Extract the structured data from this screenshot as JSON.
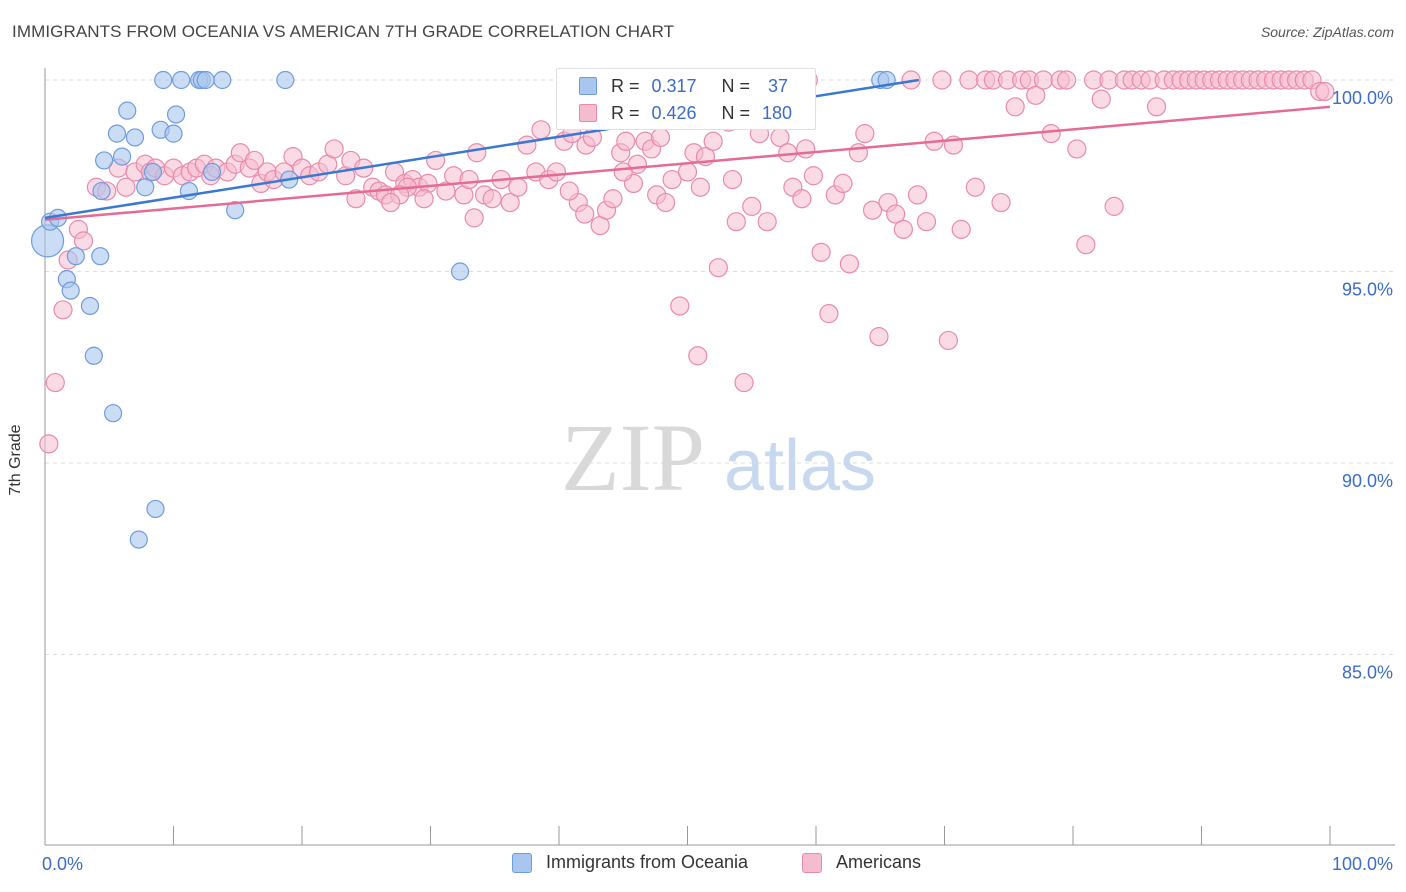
{
  "header": {
    "title": "IMMIGRANTS FROM OCEANIA VS AMERICAN 7TH GRADE CORRELATION CHART",
    "source": "Source: ZipAtlas.com"
  },
  "watermark": {
    "zip": "ZIP",
    "atlas": "atlas"
  },
  "legend": {
    "r_label": "R =",
    "n_label": "N =",
    "blue": {
      "r": "0.317",
      "n": "37"
    },
    "pink": {
      "r": "0.426",
      "n": "180"
    }
  },
  "bottom_legend": {
    "blue_label": "Immigrants from Oceania",
    "pink_label": "Americans"
  },
  "colors": {
    "blue_fill": "#a9c6ee",
    "blue_stroke": "#6f9cdc",
    "blue_line": "#3a78d1",
    "pink_fill": "#f5bcd0",
    "pink_stroke": "#ea8aab",
    "pink_line": "#e56a95",
    "tick_text": "#3b6cc7",
    "grid": "#dedede"
  },
  "chart_data": {
    "type": "scatter",
    "title": "IMMIGRANTS FROM OCEANIA VS AMERICAN 7TH GRADE CORRELATION CHART",
    "xlabel": "",
    "ylabel": "7th Grade",
    "xlim": [
      0,
      100
    ],
    "ylim": [
      80.5,
      100.7
    ],
    "x_tick_labels": [
      "0.0%",
      "100.0%"
    ],
    "y_ticks": [
      {
        "value": 100,
        "label": "100.0%"
      },
      {
        "value": 95,
        "label": "95.0%"
      },
      {
        "value": 90,
        "label": "90.0%"
      },
      {
        "value": 85,
        "label": "85.0%"
      }
    ],
    "grid": true,
    "series": [
      {
        "name": "Immigrants from Oceania",
        "color": "#6f9cdc",
        "points": [
          [
            0.2,
            95.8
          ],
          [
            0.4,
            96.3
          ],
          [
            1.0,
            96.4
          ],
          [
            1.7,
            94.8
          ],
          [
            2.0,
            94.5
          ],
          [
            2.4,
            95.4
          ],
          [
            3.5,
            94.1
          ],
          [
            3.8,
            92.8
          ],
          [
            4.3,
            95.4
          ],
          [
            4.4,
            97.1
          ],
          [
            4.6,
            97.9
          ],
          [
            5.3,
            91.3
          ],
          [
            5.6,
            98.6
          ],
          [
            6.0,
            98.0
          ],
          [
            6.4,
            99.2
          ],
          [
            7.0,
            98.5
          ],
          [
            7.3,
            88.0
          ],
          [
            7.8,
            97.2
          ],
          [
            8.4,
            97.6
          ],
          [
            8.6,
            88.8
          ],
          [
            9.0,
            98.7
          ],
          [
            9.2,
            100.0
          ],
          [
            10.0,
            98.6
          ],
          [
            10.2,
            99.1
          ],
          [
            10.6,
            100.0
          ],
          [
            11.2,
            97.1
          ],
          [
            12.0,
            100.0
          ],
          [
            12.2,
            100.0
          ],
          [
            12.5,
            100.0
          ],
          [
            13.0,
            97.6
          ],
          [
            13.8,
            100.0
          ],
          [
            14.8,
            96.6
          ],
          [
            18.7,
            100.0
          ],
          [
            19.0,
            97.4
          ],
          [
            32.3,
            95.0
          ],
          [
            65.0,
            100.0
          ],
          [
            65.5,
            100.0
          ]
        ]
      },
      {
        "name": "Americans",
        "color": "#ea8aab",
        "points": [
          [
            0.3,
            90.5
          ],
          [
            0.8,
            92.1
          ],
          [
            1.4,
            94.0
          ],
          [
            1.8,
            95.3
          ],
          [
            2.6,
            96.1
          ],
          [
            3.0,
            95.8
          ],
          [
            4.0,
            97.2
          ],
          [
            4.8,
            97.1
          ],
          [
            5.7,
            97.7
          ],
          [
            6.3,
            97.2
          ],
          [
            7.0,
            97.6
          ],
          [
            7.8,
            97.8
          ],
          [
            8.2,
            97.6
          ],
          [
            8.6,
            97.7
          ],
          [
            9.3,
            97.5
          ],
          [
            10.0,
            97.7
          ],
          [
            10.7,
            97.5
          ],
          [
            11.3,
            97.6
          ],
          [
            11.8,
            97.7
          ],
          [
            12.4,
            97.8
          ],
          [
            12.9,
            97.5
          ],
          [
            13.3,
            97.7
          ],
          [
            14.2,
            97.6
          ],
          [
            14.8,
            97.8
          ],
          [
            15.2,
            98.1
          ],
          [
            15.9,
            97.7
          ],
          [
            16.3,
            97.9
          ],
          [
            16.8,
            97.3
          ],
          [
            17.3,
            97.6
          ],
          [
            17.8,
            97.4
          ],
          [
            18.6,
            97.6
          ],
          [
            19.3,
            98.0
          ],
          [
            20.0,
            97.7
          ],
          [
            20.6,
            97.5
          ],
          [
            21.3,
            97.6
          ],
          [
            22.0,
            97.8
          ],
          [
            22.5,
            98.2
          ],
          [
            23.4,
            97.5
          ],
          [
            23.8,
            97.9
          ],
          [
            24.2,
            96.9
          ],
          [
            24.8,
            97.7
          ],
          [
            25.5,
            97.2
          ],
          [
            26.0,
            97.1
          ],
          [
            26.5,
            97.0
          ],
          [
            27.2,
            97.6
          ],
          [
            28.0,
            97.3
          ],
          [
            28.6,
            97.4
          ],
          [
            29.1,
            97.2
          ],
          [
            29.8,
            97.3
          ],
          [
            30.4,
            97.9
          ],
          [
            31.2,
            97.1
          ],
          [
            31.8,
            97.5
          ],
          [
            32.6,
            97.0
          ],
          [
            33.0,
            97.4
          ],
          [
            33.6,
            98.1
          ],
          [
            34.2,
            97.0
          ],
          [
            34.8,
            96.9
          ],
          [
            35.5,
            97.4
          ],
          [
            36.2,
            96.8
          ],
          [
            36.8,
            97.2
          ],
          [
            37.5,
            98.3
          ],
          [
            38.2,
            97.6
          ],
          [
            38.6,
            98.7
          ],
          [
            39.2,
            97.4
          ],
          [
            39.8,
            97.6
          ],
          [
            40.4,
            98.4
          ],
          [
            41.0,
            98.6
          ],
          [
            41.5,
            96.8
          ],
          [
            42.1,
            98.3
          ],
          [
            42.6,
            98.5
          ],
          [
            43.2,
            96.2
          ],
          [
            43.7,
            96.6
          ],
          [
            44.2,
            96.9
          ],
          [
            44.8,
            98.1
          ],
          [
            45.2,
            98.4
          ],
          [
            45.8,
            97.3
          ],
          [
            46.1,
            97.8
          ],
          [
            46.7,
            98.4
          ],
          [
            47.2,
            98.2
          ],
          [
            47.6,
            97.0
          ],
          [
            48.3,
            96.8
          ],
          [
            48.8,
            97.4
          ],
          [
            49.4,
            94.1
          ],
          [
            50.0,
            97.6
          ],
          [
            50.5,
            98.1
          ],
          [
            50.8,
            92.8
          ],
          [
            51.4,
            98.0
          ],
          [
            52.0,
            98.4
          ],
          [
            52.4,
            95.1
          ],
          [
            53.2,
            98.9
          ],
          [
            53.8,
            96.3
          ],
          [
            54.4,
            92.1
          ],
          [
            55.0,
            96.7
          ],
          [
            55.6,
            98.6
          ],
          [
            56.2,
            96.3
          ],
          [
            57.2,
            98.5
          ],
          [
            57.8,
            98.1
          ],
          [
            58.2,
            97.2
          ],
          [
            58.9,
            96.9
          ],
          [
            59.2,
            98.2
          ],
          [
            59.8,
            97.5
          ],
          [
            60.4,
            95.5
          ],
          [
            61.0,
            93.9
          ],
          [
            61.5,
            97.0
          ],
          [
            62.1,
            97.3
          ],
          [
            62.6,
            95.2
          ],
          [
            63.3,
            98.1
          ],
          [
            63.8,
            98.6
          ],
          [
            64.4,
            96.6
          ],
          [
            64.9,
            93.3
          ],
          [
            65.6,
            96.8
          ],
          [
            66.2,
            96.5
          ],
          [
            66.8,
            96.1
          ],
          [
            67.4,
            100.0
          ],
          [
            67.9,
            97.0
          ],
          [
            68.6,
            96.3
          ],
          [
            69.2,
            98.4
          ],
          [
            69.8,
            100.0
          ],
          [
            70.3,
            93.2
          ],
          [
            70.7,
            98.3
          ],
          [
            71.3,
            96.1
          ],
          [
            71.9,
            100.0
          ],
          [
            72.4,
            97.2
          ],
          [
            73.2,
            100.0
          ],
          [
            73.8,
            100.0
          ],
          [
            74.4,
            96.8
          ],
          [
            74.9,
            100.0
          ],
          [
            75.5,
            99.3
          ],
          [
            76.0,
            100.0
          ],
          [
            76.6,
            100.0
          ],
          [
            77.1,
            99.6
          ],
          [
            77.7,
            100.0
          ],
          [
            78.3,
            98.6
          ],
          [
            79.0,
            100.0
          ],
          [
            79.5,
            100.0
          ],
          [
            80.3,
            98.2
          ],
          [
            81.0,
            95.7
          ],
          [
            81.6,
            100.0
          ],
          [
            82.2,
            99.5
          ],
          [
            82.8,
            100.0
          ],
          [
            83.2,
            96.7
          ],
          [
            84.0,
            100.0
          ],
          [
            84.6,
            100.0
          ],
          [
            85.3,
            100.0
          ],
          [
            86.0,
            100.0
          ],
          [
            86.5,
            99.3
          ],
          [
            87.1,
            100.0
          ],
          [
            87.8,
            100.0
          ],
          [
            88.4,
            100.0
          ],
          [
            89.0,
            100.0
          ],
          [
            89.6,
            100.0
          ],
          [
            90.2,
            100.0
          ],
          [
            90.8,
            100.0
          ],
          [
            91.4,
            100.0
          ],
          [
            92.0,
            100.0
          ],
          [
            92.6,
            100.0
          ],
          [
            93.2,
            100.0
          ],
          [
            93.8,
            100.0
          ],
          [
            94.4,
            100.0
          ],
          [
            95.0,
            100.0
          ],
          [
            95.6,
            100.0
          ],
          [
            96.2,
            100.0
          ],
          [
            96.8,
            100.0
          ],
          [
            97.4,
            100.0
          ],
          [
            98.0,
            100.0
          ],
          [
            98.6,
            100.0
          ],
          [
            99.2,
            99.7
          ],
          [
            99.6,
            99.7
          ],
          [
            28.2,
            97.2
          ],
          [
            27.6,
            97.0
          ],
          [
            26.9,
            96.8
          ],
          [
            33.4,
            96.4
          ],
          [
            29.5,
            96.9
          ],
          [
            40.8,
            97.1
          ],
          [
            42.0,
            96.5
          ],
          [
            45.0,
            97.6
          ],
          [
            47.9,
            98.5
          ],
          [
            51.0,
            97.2
          ],
          [
            53.5,
            97.4
          ],
          [
            59.4,
            100.0
          ]
        ]
      }
    ],
    "trendlines": [
      {
        "series": "Immigrants from Oceania",
        "x": [
          0,
          68
        ],
        "y": [
          96.4,
          100.0
        ]
      },
      {
        "series": "Americans",
        "x": [
          0,
          100
        ],
        "y": [
          96.35,
          99.3
        ]
      }
    ]
  }
}
